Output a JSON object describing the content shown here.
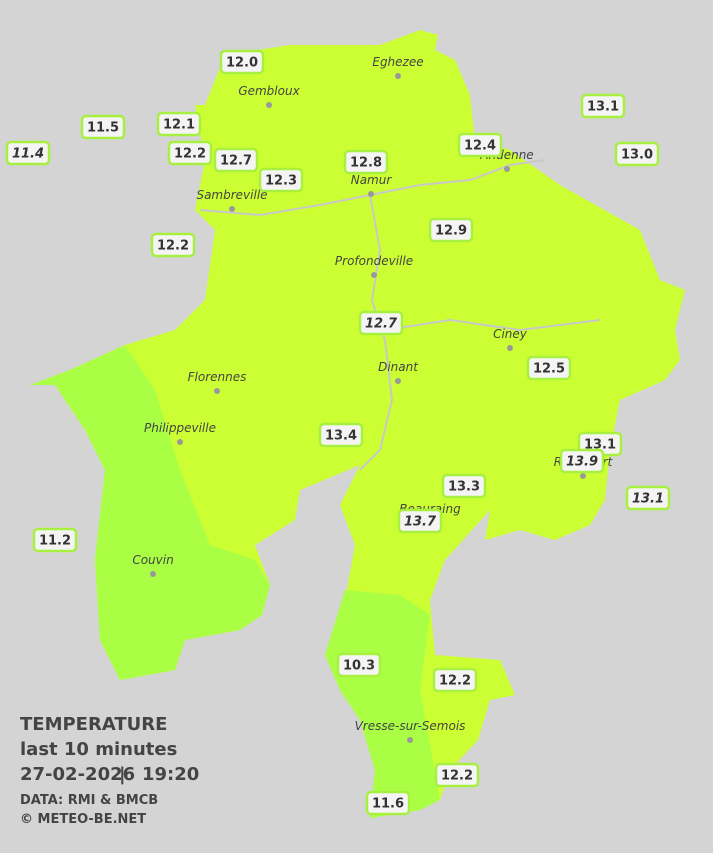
{
  "legend": {
    "title": "TEMPERATURE",
    "subtitle": "last 10 minutes",
    "date": "27-02-2026",
    "separator": "|",
    "time": "19:20",
    "source": "DATA: RMI & BMCB",
    "copyright": "© METEO-BE.NET"
  },
  "cities": [
    "Eghezee",
    "Gembloux",
    "Andenne",
    "Namur",
    "Sambreville",
    "Profondeville",
    "Ciney",
    "Dinant",
    "Florennes",
    "Philippeville",
    "Rochefort",
    "Beauraing",
    "Couvin",
    "Vresse-sur-Semois"
  ],
  "stations": [
    {
      "text": "12.0",
      "italic": false
    },
    {
      "text": "11.5",
      "italic": false
    },
    {
      "text": "12.1",
      "italic": false
    },
    {
      "text": "11.4",
      "italic": true
    },
    {
      "text": "12.2",
      "italic": false
    },
    {
      "text": "12.7",
      "italic": false
    },
    {
      "text": "12.3",
      "italic": false
    },
    {
      "text": "12.8",
      "italic": false
    },
    {
      "text": "12.4",
      "italic": false
    },
    {
      "text": "13.1",
      "italic": false
    },
    {
      "text": "13.0",
      "italic": false
    },
    {
      "text": "12.9",
      "italic": false
    },
    {
      "text": "12.2",
      "italic": false
    },
    {
      "text": "12.7",
      "italic": true
    },
    {
      "text": "12.5",
      "italic": false
    },
    {
      "text": "13.4",
      "italic": false
    },
    {
      "text": "13.1",
      "italic": false
    },
    {
      "text": "13.9",
      "italic": true
    },
    {
      "text": "13.3",
      "italic": false
    },
    {
      "text": "13.1",
      "italic": true
    },
    {
      "text": "13.7",
      "italic": true
    },
    {
      "text": "11.2",
      "italic": false
    },
    {
      "text": "10.3",
      "italic": false
    },
    {
      "text": "12.2",
      "italic": false
    },
    {
      "text": "12.2",
      "italic": false
    },
    {
      "text": "11.6",
      "italic": false
    }
  ]
}
